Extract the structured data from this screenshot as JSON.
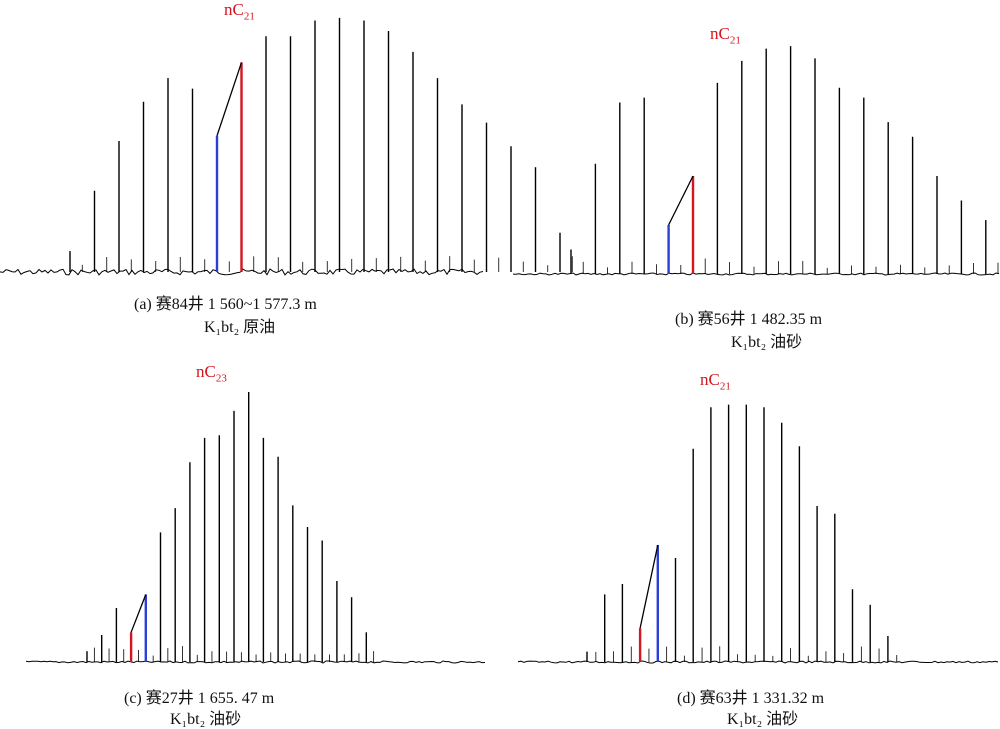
{
  "figure": {
    "panels": [
      {
        "id": "a",
        "peak_label_main": "nC",
        "peak_label_sub": "21",
        "caption_line1": "(a)  赛84井 1 560~1 577.3 m",
        "caption_line2": "K₁bt₂  原油"
      },
      {
        "id": "b",
        "peak_label_main": "nC",
        "peak_label_sub": "21",
        "caption_line1": "(b)  赛56井  1 482.35 m",
        "caption_line2": "K₁bt₂  油砂"
      },
      {
        "id": "c",
        "peak_label_main": "nC",
        "peak_label_sub": "23",
        "caption_line1": "(c)  赛27井 1 655. 47 m",
        "caption_line2": "K₁bt₂  油砂"
      },
      {
        "id": "d",
        "peak_label_main": "nC",
        "peak_label_sub": "21",
        "caption_line1": "(d)  赛63井  1 331.32 m",
        "caption_line2": "K₁bt₂  油砂"
      }
    ]
  },
  "chart_data": [
    {
      "type": "chromatogram",
      "panel": "a",
      "peaks": [
        0.08,
        0.31,
        0.5,
        0.65,
        0.74,
        0.7,
        0.52,
        0.8,
        0.9,
        0.9,
        0.96,
        0.97,
        0.96,
        0.92,
        0.84,
        0.74,
        0.64,
        0.57,
        0.48,
        0.4,
        0.15
      ],
      "highlight": [
        {
          "index": 6,
          "color": "#2b3fd8"
        },
        {
          "index": 7,
          "color": "#d4161e"
        }
      ],
      "label_peak_index": 9,
      "colors": {
        "baseline": "#000000",
        "blue": "#2b3fd8",
        "red": "#d4161e",
        "label": "#d4161e"
      }
    },
    {
      "type": "chromatogram",
      "panel": "b",
      "peaks": [
        0.1,
        0.45,
        0.7,
        0.72,
        0.2,
        0.4,
        0.78,
        0.87,
        0.92,
        0.93,
        0.88,
        0.76,
        0.72,
        0.62,
        0.56,
        0.4,
        0.3,
        0.22,
        0.14,
        0.16
      ],
      "highlight": [
        {
          "index": 4,
          "color": "#2b3fd8"
        },
        {
          "index": 5,
          "color": "#d4161e"
        }
      ],
      "label_peak_index": 8,
      "colors": {
        "baseline": "#000000",
        "blue": "#2b3fd8",
        "red": "#d4161e",
        "label": "#d4161e"
      }
    },
    {
      "type": "chromatogram",
      "panel": "c",
      "peaks": [
        0.04,
        0.1,
        0.2,
        0.11,
        0.25,
        0.48,
        0.57,
        0.74,
        0.83,
        0.84,
        0.93,
        1.0,
        0.83,
        0.76,
        0.58,
        0.5,
        0.45,
        0.3,
        0.24,
        0.11
      ],
      "highlight": [
        {
          "index": 3,
          "color": "#d4161e"
        },
        {
          "index": 4,
          "color": "#2b3fd8"
        }
      ],
      "label_peak_index": 11,
      "colors": {
        "baseline": "#000000",
        "blue": "#2b3fd8",
        "red": "#d4161e",
        "label": "#d4161e"
      }
    },
    {
      "type": "chromatogram",
      "panel": "d",
      "peaks": [
        0.04,
        0.26,
        0.3,
        0.13,
        0.45,
        0.4,
        0.82,
        0.98,
        0.99,
        0.99,
        0.98,
        0.92,
        0.83,
        0.6,
        0.57,
        0.28,
        0.22,
        0.1
      ],
      "highlight": [
        {
          "index": 3,
          "color": "#d4161e"
        },
        {
          "index": 4,
          "color": "#2b3fd8"
        }
      ],
      "label_peak_index": 7,
      "colors": {
        "baseline": "#000000",
        "blue": "#2b3fd8",
        "red": "#d4161e",
        "label": "#d4161e"
      }
    }
  ]
}
